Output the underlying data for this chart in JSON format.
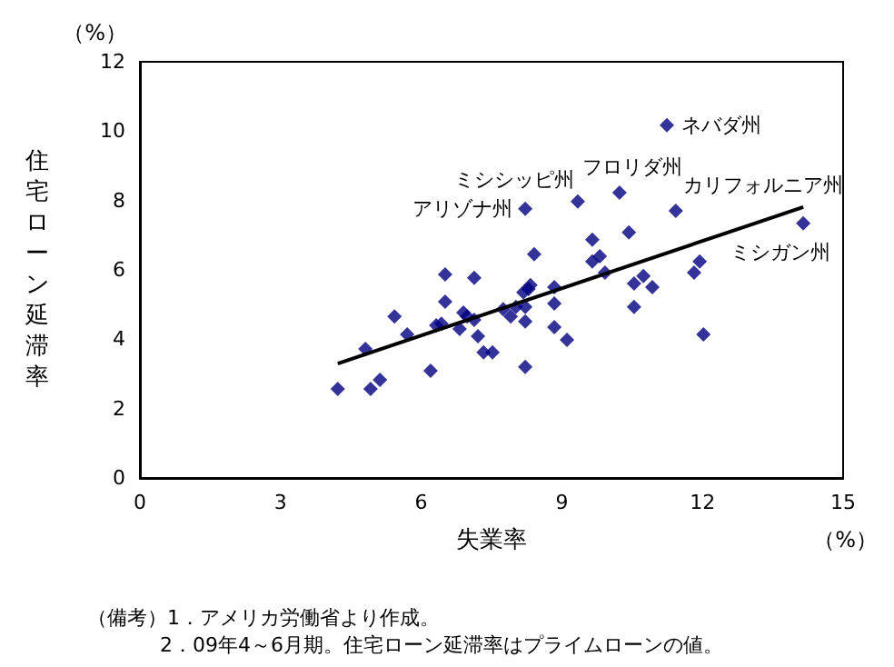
{
  "chart_data": {
    "type": "scatter",
    "xlabel": "失業率",
    "ylabel": "住宅ローン延滞率",
    "xlim": [
      0,
      15
    ],
    "xticks": [
      0,
      3,
      6,
      9,
      12,
      15
    ],
    "ylim": [
      0,
      12
    ],
    "yticks": [
      0,
      2,
      4,
      6,
      8,
      10,
      12
    ],
    "grid": false,
    "marker": "diamond",
    "series": [
      {
        "color": "#000080",
        "x": [
          4.22,
          4.81,
          4.92,
          5.12,
          5.43,
          5.7,
          6.2,
          6.32,
          6.43,
          6.51,
          6.51,
          6.82,
          6.9,
          6.98,
          7.13,
          7.13,
          7.21,
          7.33,
          7.52,
          7.75,
          7.91,
          8.02,
          8.22,
          8.18,
          8.29,
          8.33,
          8.22,
          8.22,
          8.22,
          8.41,
          8.84,
          8.84,
          8.84,
          9.11,
          9.34,
          9.65,
          9.65,
          9.81,
          9.92,
          10.23,
          10.43,
          10.54,
          10.74,
          10.54,
          10.93,
          11.24,
          11.43,
          11.94,
          11.82,
          12.02,
          14.15
        ],
        "values": [
          2.57,
          3.72,
          2.57,
          2.83,
          4.66,
          4.14,
          3.09,
          4.4,
          4.45,
          5.87,
          5.08,
          4.3,
          4.77,
          4.66,
          5.77,
          4.56,
          4.09,
          3.62,
          3.62,
          4.87,
          4.66,
          4.93,
          7.76,
          5.35,
          5.45,
          5.56,
          4.93,
          4.51,
          3.2,
          6.45,
          5.5,
          5.03,
          4.35,
          3.98,
          7.97,
          6.87,
          6.24,
          6.39,
          5.92,
          8.23,
          7.08,
          5.61,
          5.82,
          4.93,
          5.5,
          10.17,
          7.7,
          6.24,
          5.92,
          4.14,
          7.34
        ]
      },
      {
        "type": "line",
        "color": "#000000",
        "marker": "none",
        "line_style": "solid",
        "x": [
          4.22,
          14.15
        ],
        "values": [
          3.3,
          7.81
        ]
      }
    ],
    "annotations": [
      {
        "text": "ネバダ州",
        "x": 11.24,
        "y": 10.17
      },
      {
        "text": "ミシシッピ州",
        "x": 9.34,
        "y": 7.97
      },
      {
        "text": "フロリダ州",
        "x": 10.23,
        "y": 8.23
      },
      {
        "text": "アリゾナ州",
        "x": 8.22,
        "y": 7.76
      },
      {
        "text": "カリフォルニア州",
        "x": 11.43,
        "y": 7.7
      },
      {
        "text": "ミシガン州",
        "x": 14.15,
        "y": 7.34
      },
      "（%）",
      "（%）",
      "（備考）1．アメリカ労働省より作成。",
      "2．09年4～6月期。住宅ローン延滞率はプライムローンの値。"
    ]
  }
}
